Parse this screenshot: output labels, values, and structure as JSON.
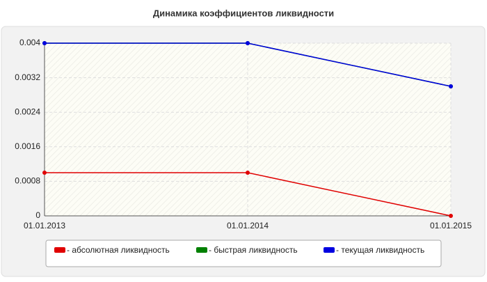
{
  "chart_data": {
    "type": "line",
    "title": "Динамика коэффициентов ликвидности",
    "categories": [
      "01.01.2013",
      "01.01.2014",
      "01.01.2015"
    ],
    "series": [
      {
        "name": "- абсолютная ликвидность",
        "color": "#e00000",
        "values": [
          0.001,
          0.001,
          0
        ]
      },
      {
        "name": "- быстрая ликвидность",
        "color": "#008000",
        "values": [
          0.004,
          0.004,
          0.003
        ]
      },
      {
        "name": "- текущая ликвидность",
        "color": "#0000e0",
        "values": [
          0.004,
          0.004,
          0.003
        ]
      }
    ],
    "ylim": [
      0,
      0.004
    ],
    "yticks": [
      0,
      0.0008,
      0.0016,
      0.0024,
      0.0032,
      0.004
    ],
    "grid": true
  }
}
